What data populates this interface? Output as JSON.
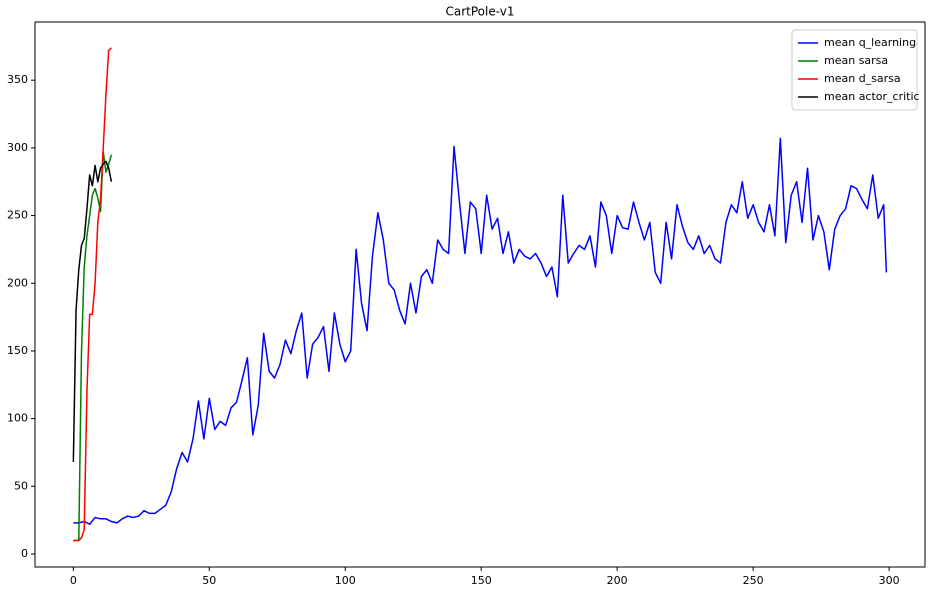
{
  "chart_data": {
    "type": "line",
    "title": "CartPole-v1",
    "xlim": [
      -14.1,
      313.2
    ],
    "xticks": [
      0,
      50,
      100,
      150,
      200,
      250,
      300
    ],
    "ylim": [
      -9.6,
      393
    ],
    "yticks": [
      0,
      50,
      100,
      150,
      200,
      250,
      300,
      350
    ],
    "legend": "upper right",
    "grid": false,
    "series": [
      {
        "name": "mean q_learning",
        "color": "#0000ff",
        "x": [
          0,
          2,
          4,
          6,
          8,
          10,
          12,
          14,
          16,
          18,
          20,
          22,
          24,
          26,
          28,
          30,
          32,
          34,
          36,
          38,
          40,
          42,
          44,
          46,
          48,
          50,
          52,
          54,
          56,
          58,
          60,
          62,
          64,
          66,
          68,
          70,
          72,
          74,
          76,
          78,
          80,
          82,
          84,
          86,
          88,
          90,
          92,
          94,
          96,
          98,
          100,
          102,
          104,
          106,
          108,
          110,
          112,
          114,
          116,
          118,
          120,
          122,
          124,
          126,
          128,
          130,
          132,
          134,
          136,
          138,
          140,
          142,
          144,
          146,
          148,
          150,
          152,
          154,
          156,
          158,
          160,
          162,
          164,
          166,
          168,
          170,
          172,
          174,
          176,
          178,
          180,
          182,
          184,
          186,
          188,
          190,
          192,
          194,
          196,
          198,
          200,
          202,
          204,
          206,
          208,
          210,
          212,
          214,
          216,
          218,
          220,
          222,
          224,
          226,
          228,
          230,
          232,
          234,
          236,
          238,
          240,
          242,
          244,
          246,
          248,
          250,
          252,
          254,
          256,
          258,
          260,
          262,
          264,
          266,
          268,
          270,
          272,
          274,
          276,
          278,
          280,
          282,
          284,
          286,
          288,
          290,
          292,
          294,
          296,
          298,
          299
        ],
        "values": [
          23,
          23,
          24,
          22,
          27,
          26,
          26,
          24,
          23,
          26,
          28,
          27,
          28,
          32,
          30,
          30,
          33,
          36,
          46,
          63,
          75,
          68,
          85,
          113,
          85,
          115,
          92,
          98,
          95,
          108,
          112,
          128,
          145,
          88,
          110,
          163,
          135,
          130,
          140,
          158,
          148,
          165,
          178,
          130,
          155,
          160,
          168,
          135,
          178,
          155,
          142,
          150,
          225,
          185,
          165,
          220,
          252,
          232,
          200,
          195,
          180,
          170,
          200,
          178,
          205,
          210,
          200,
          232,
          225,
          222,
          301,
          260,
          222,
          260,
          255,
          222,
          265,
          240,
          248,
          222,
          238,
          215,
          225,
          220,
          218,
          222,
          215,
          205,
          212,
          190,
          265,
          215,
          222,
          228,
          225,
          235,
          212,
          260,
          250,
          222,
          250,
          241,
          240,
          260,
          245,
          232,
          245,
          208,
          200,
          245,
          218,
          258,
          242,
          230,
          225,
          235,
          222,
          228,
          218,
          215,
          245,
          258,
          252,
          275,
          248,
          258,
          245,
          238,
          258,
          235,
          307,
          230,
          265,
          275,
          245,
          285,
          232,
          250,
          238,
          210,
          240,
          250,
          255,
          272,
          270,
          262,
          255,
          280,
          248,
          258,
          208
        ]
      },
      {
        "name": "mean sarsa",
        "color": "#008000",
        "x": [
          0,
          1,
          2,
          3,
          4,
          5,
          6,
          7,
          8,
          9,
          10,
          11,
          12,
          13,
          14
        ],
        "values": [
          10,
          10,
          10,
          150,
          212,
          235,
          250,
          265,
          270,
          263,
          253,
          297,
          282,
          288,
          295
        ]
      },
      {
        "name": "mean d_sarsa",
        "color": "#ff0000",
        "x": [
          0,
          1,
          2,
          3,
          4,
          5,
          6,
          7,
          8,
          9,
          10,
          11,
          12,
          13,
          14
        ],
        "values": [
          10,
          10,
          10,
          12,
          18,
          120,
          177,
          177,
          200,
          245,
          262,
          300,
          340,
          372,
          374
        ]
      },
      {
        "name": "mean actor_critic",
        "color": "#000000",
        "x": [
          0,
          1,
          2,
          3,
          4,
          5,
          6,
          7,
          8,
          9,
          10,
          11,
          12,
          13,
          14
        ],
        "values": [
          68,
          180,
          210,
          228,
          233,
          255,
          280,
          272,
          287,
          275,
          285,
          288,
          290,
          285,
          275
        ]
      }
    ]
  }
}
